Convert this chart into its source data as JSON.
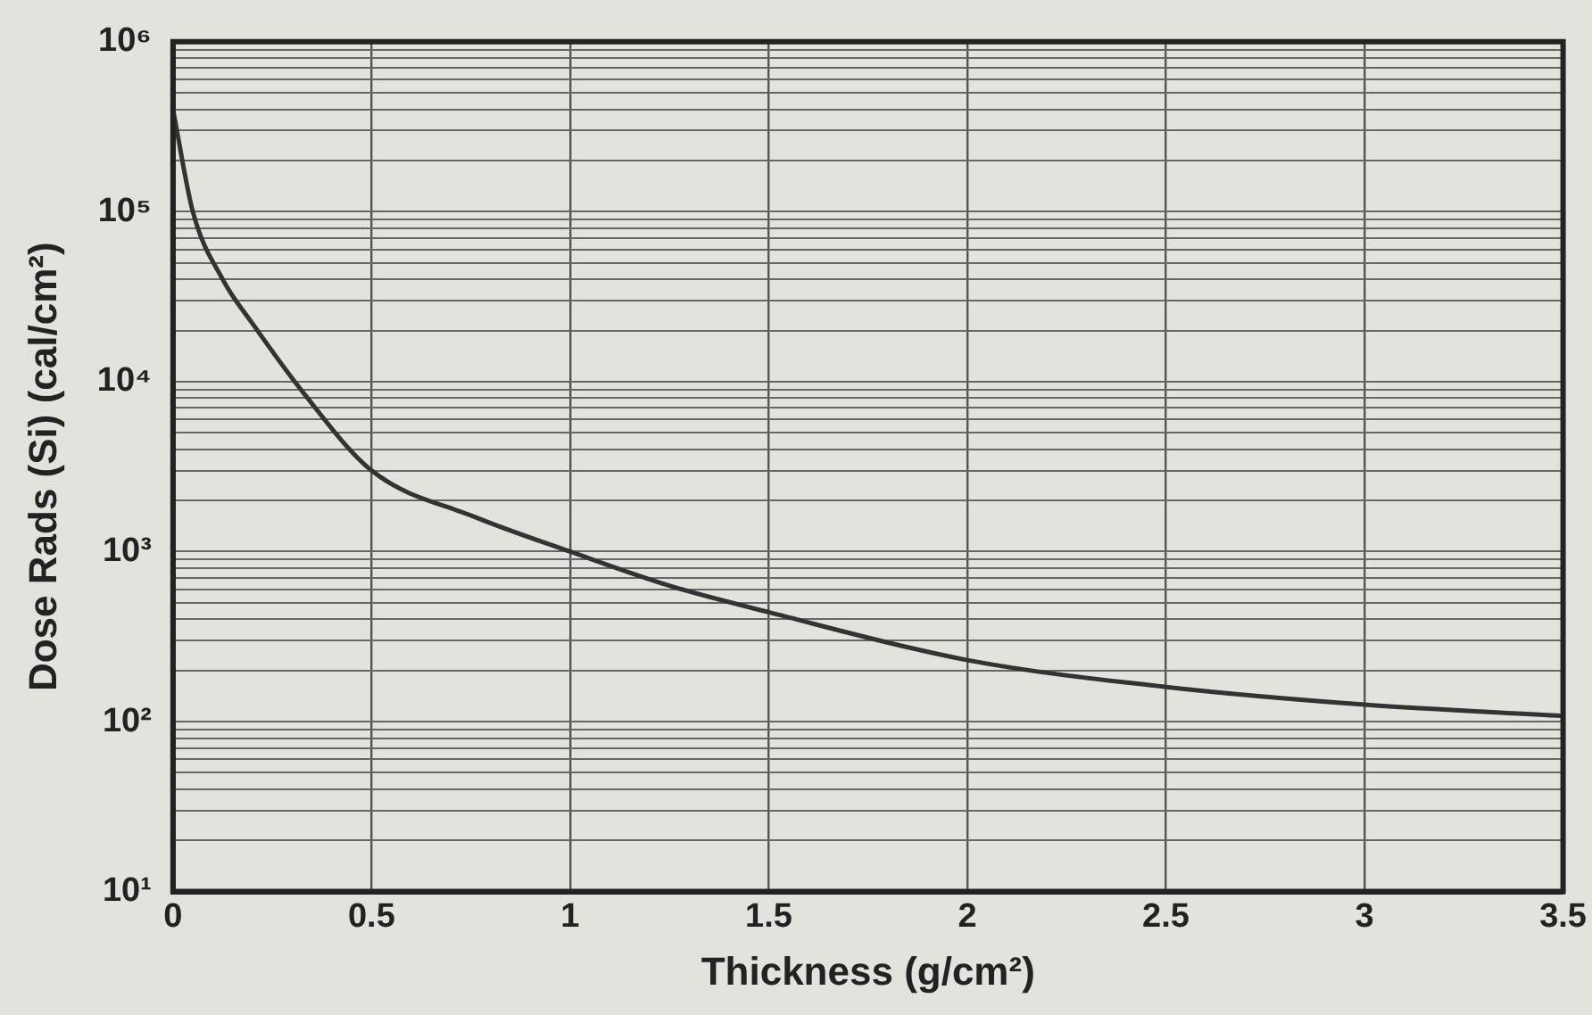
{
  "chart_data": {
    "type": "line",
    "xlabel": "Thickness (g/cm²)",
    "ylabel": "Dose Rads (Si) (cal/cm²)",
    "log": "y",
    "grid": true,
    "legend": false,
    "marker": "none",
    "line_style": "solid",
    "x": [
      0,
      0.05,
      0.125,
      0.2,
      0.33,
      0.5,
      0.76,
      1,
      1.25,
      1.5,
      2,
      2.5,
      3,
      3.5
    ],
    "series": [
      {
        "color": "#333333",
        "values": [
          400000,
          100000,
          40000,
          22000,
          8500,
          3000,
          1600,
          1000,
          630,
          440,
          230,
          160,
          126,
          108
        ]
      }
    ],
    "xlim": [
      0,
      3.5
    ],
    "xticks": [
      0,
      0.5,
      1,
      1.5,
      2,
      2.5,
      3,
      3.5
    ],
    "ylim": [
      10,
      1000000
    ],
    "yticks": [
      {
        "value": 10,
        "label": "10¹"
      },
      {
        "value": 20,
        "label": null
      },
      {
        "value": 30,
        "label": null
      },
      {
        "value": 40,
        "label": null
      },
      {
        "value": 50,
        "label": null
      },
      {
        "value": 60,
        "label": null
      },
      {
        "value": 70,
        "label": null
      },
      {
        "value": 80,
        "label": null
      },
      {
        "value": 90,
        "label": null
      },
      {
        "value": 100,
        "label": "10²"
      },
      {
        "value": 200,
        "label": null
      },
      {
        "value": 300,
        "label": null
      },
      {
        "value": 400,
        "label": null
      },
      {
        "value": 500,
        "label": null
      },
      {
        "value": 600,
        "label": null
      },
      {
        "value": 700,
        "label": null
      },
      {
        "value": 800,
        "label": null
      },
      {
        "value": 900,
        "label": null
      },
      {
        "value": 1000,
        "label": "10³"
      },
      {
        "value": 2000,
        "label": null
      },
      {
        "value": 3000,
        "label": null
      },
      {
        "value": 4000,
        "label": null
      },
      {
        "value": 5000,
        "label": null
      },
      {
        "value": 6000,
        "label": null
      },
      {
        "value": 7000,
        "label": null
      },
      {
        "value": 8000,
        "label": null
      },
      {
        "value": 9000,
        "label": null
      },
      {
        "value": 10000,
        "label": "10⁴"
      },
      {
        "value": 20000,
        "label": null
      },
      {
        "value": 30000,
        "label": null
      },
      {
        "value": 40000,
        "label": null
      },
      {
        "value": 50000,
        "label": null
      },
      {
        "value": 60000,
        "label": null
      },
      {
        "value": 70000,
        "label": null
      },
      {
        "value": 80000,
        "label": null
      },
      {
        "value": 90000,
        "label": null
      },
      {
        "value": 100000,
        "label": "10⁵"
      },
      {
        "value": 200000,
        "label": null
      },
      {
        "value": 300000,
        "label": null
      },
      {
        "value": 400000,
        "label": null
      },
      {
        "value": 500000,
        "label": null
      },
      {
        "value": 600000,
        "label": null
      },
      {
        "value": 700000,
        "label": null
      },
      {
        "value": 800000,
        "label": null
      },
      {
        "value": 900000,
        "label": null
      },
      {
        "value": 1000000,
        "label": "10⁶"
      }
    ]
  }
}
